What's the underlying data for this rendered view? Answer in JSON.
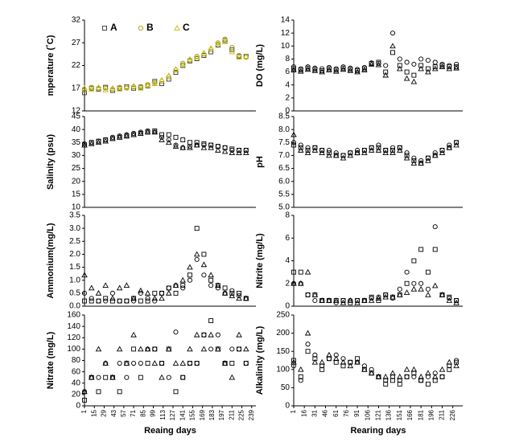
{
  "chart_data": [
    {
      "type": "scatter",
      "ylabel": "mperature (˚C)",
      "legend": "top",
      "x": [
        1,
        11,
        21,
        31,
        41,
        51,
        61,
        71,
        81,
        91,
        101,
        111,
        121,
        131,
        141,
        151,
        161,
        171,
        181,
        191,
        201,
        211,
        221,
        231
      ],
      "xlim": [
        1,
        245
      ],
      "ylim": [
        12,
        32
      ],
      "yticks": [
        12,
        17,
        22,
        27,
        32
      ],
      "series": [
        {
          "name": "A",
          "color": "#333333",
          "values": [
            16,
            17,
            16.8,
            17.2,
            16.5,
            17,
            17.3,
            17,
            17.2,
            17.5,
            18.5,
            18,
            19,
            20.5,
            22,
            23,
            23.5,
            24.2,
            25,
            26.5,
            27.5,
            25.5,
            24,
            24
          ]
        },
        {
          "name": "B",
          "color": "#a89400",
          "values": [
            16.5,
            17.2,
            17,
            17,
            16.8,
            17.2,
            17,
            17.3,
            17.4,
            17.8,
            18.2,
            18.5,
            19.5,
            21,
            22.5,
            23.2,
            24,
            24.5,
            25.5,
            27,
            27.8,
            26,
            24.2,
            23.8
          ]
        },
        {
          "name": "C",
          "color": "#c8c000",
          "values": [
            17,
            16.8,
            17.2,
            16.6,
            17,
            16.8,
            17.2,
            17.5,
            17,
            17.6,
            18,
            18.8,
            19.8,
            21.2,
            22.2,
            23.4,
            23.8,
            24.8,
            25.8,
            26.8,
            27.2,
            25,
            23.8,
            24
          ]
        }
      ]
    },
    {
      "type": "scatter",
      "ylabel": "DO (mg/L)",
      "x": [
        1,
        11,
        21,
        31,
        41,
        51,
        61,
        71,
        81,
        91,
        101,
        111,
        121,
        131,
        141,
        151,
        161,
        171,
        181,
        191,
        201,
        211,
        221,
        231
      ],
      "xlim": [
        1,
        240
      ],
      "ylim": [
        0,
        14
      ],
      "yticks": [
        0,
        2,
        4,
        6,
        8,
        10,
        12,
        14
      ],
      "series": [
        {
          "color": "#000000",
          "values": [
            6.5,
            6.3,
            6.6,
            6.4,
            6.2,
            6.5,
            6.3,
            6.6,
            6.4,
            6.2,
            6.5,
            7.3,
            7.5,
            6,
            9,
            7,
            6,
            5.5,
            7,
            6.5,
            6.8,
            7,
            6.8,
            6.8
          ]
        },
        {
          "color": "#000000",
          "values": [
            6.8,
            6.5,
            6.8,
            6.6,
            6.5,
            6.7,
            6.5,
            6.8,
            6.6,
            6.4,
            6.7,
            7.4,
            7.3,
            7,
            12,
            8,
            7.5,
            7.2,
            8,
            7.8,
            7.5,
            7.2,
            7,
            7.2
          ]
        },
        {
          "color": "#000000",
          "values": [
            6.3,
            6.1,
            6.4,
            6.2,
            6,
            6.3,
            6.1,
            6.4,
            6.2,
            6,
            6.3,
            7.2,
            7.1,
            5.5,
            10,
            6.5,
            5,
            4.5,
            6.5,
            6,
            6.5,
            6.8,
            6.5,
            6.6
          ]
        }
      ]
    },
    {
      "type": "scatter",
      "ylabel": "Salinity (psu)",
      "x": [
        1,
        11,
        21,
        31,
        41,
        51,
        61,
        71,
        81,
        91,
        101,
        111,
        121,
        131,
        141,
        151,
        161,
        171,
        181,
        191,
        201,
        211,
        221,
        231
      ],
      "xlim": [
        1,
        245
      ],
      "ylim": [
        10,
        45
      ],
      "yticks": [
        10,
        15,
        20,
        25,
        30,
        35,
        40,
        45
      ],
      "series": [
        {
          "color": "#000000",
          "values": [
            34,
            35,
            35.5,
            36,
            36.5,
            37,
            37.5,
            38,
            38.5,
            39,
            39.5,
            38,
            38,
            37,
            36,
            35,
            35,
            34.5,
            34,
            33.5,
            33,
            32.5,
            32,
            32
          ]
        },
        {
          "color": "#000000",
          "values": [
            34.5,
            35,
            35.5,
            36,
            37,
            37.5,
            38,
            38.5,
            39,
            39.5,
            39,
            37,
            36,
            34,
            33,
            33.5,
            34,
            34,
            34,
            33.5,
            33,
            32,
            32,
            32
          ]
        },
        {
          "color": "#000000",
          "values": [
            34,
            34.5,
            35,
            35.5,
            36.5,
            37,
            37.5,
            38,
            38.5,
            39,
            39,
            36,
            35,
            33.5,
            33,
            33,
            34,
            33,
            33,
            32,
            31.5,
            31,
            31,
            31
          ]
        }
      ]
    },
    {
      "type": "scatter",
      "ylabel": "pH",
      "x": [
        1,
        11,
        21,
        31,
        41,
        51,
        61,
        71,
        81,
        91,
        101,
        111,
        121,
        131,
        141,
        151,
        161,
        171,
        181,
        191,
        201,
        211,
        221,
        231
      ],
      "xlim": [
        1,
        240
      ],
      "ylim": [
        5,
        8.5
      ],
      "yticks": [
        {
          "value": 5,
          "label": "5.0"
        },
        5.5,
        {
          "value": 6,
          "label": "6.0"
        },
        6.5,
        {
          "value": 7,
          "label": "7.0"
        },
        7.5,
        {
          "value": 8,
          "label": "8.0"
        },
        8.5
      ],
      "series": [
        {
          "color": "#000000",
          "values": [
            7.4,
            7.3,
            7.2,
            7.3,
            7.2,
            7.1,
            7.0,
            7.0,
            7.1,
            7.1,
            7.2,
            7.3,
            7.3,
            7.2,
            7.2,
            7.3,
            7.0,
            6.8,
            6.7,
            6.9,
            7.0,
            7.2,
            7.3,
            7.5
          ]
        },
        {
          "color": "#000000",
          "values": [
            7.5,
            7.4,
            7.3,
            7.3,
            7.2,
            7.2,
            7.1,
            7.0,
            7.1,
            7.2,
            7.2,
            7.3,
            7.4,
            7.2,
            7.3,
            7.3,
            7.1,
            6.9,
            6.8,
            6.9,
            7.1,
            7.2,
            7.4,
            7.5
          ]
        },
        {
          "color": "#000000",
          "values": [
            7.8,
            7.2,
            7.1,
            7.2,
            7.1,
            7.0,
            7.0,
            6.9,
            7.0,
            7.1,
            7.1,
            7.2,
            7.2,
            7.1,
            7.1,
            7.2,
            6.9,
            6.7,
            6.7,
            6.8,
            7.0,
            7.1,
            7.3,
            7.4
          ]
        }
      ]
    },
    {
      "type": "scatter",
      "ylabel": "Ammonium(mg/L)",
      "x": [
        1,
        11,
        21,
        31,
        41,
        51,
        61,
        71,
        81,
        91,
        101,
        111,
        121,
        131,
        141,
        151,
        161,
        171,
        181,
        191,
        201,
        211,
        221,
        231
      ],
      "xlim": [
        1,
        245
      ],
      "ylim": [
        0,
        3.5
      ],
      "yticks": [
        {
          "value": 0,
          "label": "0.0"
        },
        0.5,
        {
          "value": 1,
          "label": "1.0"
        },
        1.5,
        {
          "value": 2,
          "label": "2.0"
        },
        2.5,
        {
          "value": 3,
          "label": "3.0"
        },
        3.5
      ],
      "series": [
        {
          "color": "#000000",
          "values": [
            0.2,
            0.2,
            0.2,
            0.3,
            0.2,
            0.2,
            0.2,
            0.3,
            0.2,
            0.2,
            0.5,
            0.5,
            0.7,
            0.5,
            0.8,
            1.2,
            3.0,
            2.0,
            1.0,
            0.8,
            0.7,
            0.5,
            0.5,
            0.3
          ]
        },
        {
          "color": "#000000",
          "values": [
            0.5,
            0.3,
            0.2,
            0.2,
            0.5,
            0.2,
            0.2,
            0.2,
            0.5,
            0.3,
            0.2,
            0.5,
            0.7,
            0.8,
            0.7,
            1.0,
            1.8,
            1.2,
            0.8,
            0.7,
            0.5,
            0.6,
            0.4,
            0.3
          ]
        },
        {
          "color": "#000000",
          "values": [
            1.2,
            0.7,
            0.5,
            0.8,
            0.3,
            0.7,
            0.8,
            0.3,
            0.6,
            0.5,
            0.3,
            0.3,
            0.5,
            0.8,
            1.0,
            1.5,
            2.0,
            1.6,
            1.2,
            0.8,
            0.5,
            0.4,
            0.3,
            0.3
          ]
        }
      ]
    },
    {
      "type": "scatter",
      "ylabel": "Nitrite (mg/L)",
      "x": [
        1,
        11,
        21,
        31,
        41,
        51,
        61,
        71,
        81,
        91,
        101,
        111,
        121,
        131,
        141,
        151,
        161,
        171,
        181,
        191,
        201,
        211,
        221,
        231
      ],
      "xlim": [
        1,
        240
      ],
      "ylim": [
        0,
        8
      ],
      "yticks": [
        0,
        2,
        4,
        6,
        8
      ],
      "series": [
        {
          "color": "#000000",
          "values": [
            3,
            3,
            1,
            1,
            0.5,
            0.5,
            0.5,
            0.5,
            0.3,
            0.5,
            0.5,
            0.8,
            0.5,
            1,
            0.8,
            1,
            2,
            4,
            5,
            3,
            5,
            1,
            0.8,
            0.5
          ]
        },
        {
          "color": "#000000",
          "values": [
            2,
            2,
            1,
            0.5,
            0.5,
            0.5,
            0.3,
            0.5,
            0.5,
            0.5,
            0.5,
            0.7,
            0.8,
            1,
            0.7,
            1.5,
            3,
            2,
            2,
            1.5,
            7,
            1,
            0.7,
            0.5
          ]
        },
        {
          "color": "#000000",
          "values": [
            2,
            2,
            3,
            1,
            0.5,
            0.5,
            0.5,
            0.3,
            0.5,
            0.3,
            0.5,
            0.5,
            0.7,
            0.8,
            0.8,
            1,
            1.2,
            1.5,
            1.5,
            1,
            1.8,
            1,
            0.5,
            0.3
          ]
        }
      ]
    },
    {
      "type": "scatter",
      "ylabel": "Nitrate (mg/L)",
      "xlabel": "Reaing days",
      "x": [
        1,
        11,
        21,
        31,
        41,
        51,
        61,
        71,
        81,
        91,
        101,
        111,
        121,
        131,
        141,
        151,
        161,
        171,
        181,
        191,
        201,
        211,
        221,
        231
      ],
      "xlim": [
        1,
        245
      ],
      "xticks": [
        1,
        15,
        29,
        43,
        57,
        71,
        85,
        99,
        113,
        127,
        141,
        155,
        169,
        183,
        197,
        211,
        225,
        239
      ],
      "ylim": [
        0,
        160
      ],
      "yticks": [
        0,
        20,
        40,
        60,
        80,
        100,
        120,
        140,
        160
      ],
      "series": [
        {
          "color": "#000000",
          "values": [
            10,
            50,
            25,
            50,
            50,
            25,
            75,
            100,
            50,
            75,
            100,
            75,
            100,
            25,
            50,
            75,
            75,
            125,
            150,
            100,
            75,
            75,
            100,
            75
          ]
        },
        {
          "color": "#000000",
          "values": [
            25,
            50,
            50,
            75,
            50,
            75,
            50,
            75,
            75,
            100,
            100,
            75,
            50,
            130,
            50,
            75,
            75,
            125,
            100,
            125,
            75,
            100,
            100,
            75
          ]
        },
        {
          "color": "#000000",
          "values": [
            25,
            50,
            100,
            75,
            50,
            100,
            75,
            125,
            100,
            100,
            75,
            50,
            100,
            75,
            75,
            100,
            125,
            100,
            125,
            100,
            75,
            50,
            125,
            100
          ]
        }
      ]
    },
    {
      "type": "scatter",
      "ylabel": "Alkalinity (mg/L)",
      "xlabel": "Rearing days",
      "x": [
        1,
        11,
        21,
        31,
        41,
        51,
        61,
        71,
        81,
        91,
        101,
        111,
        121,
        131,
        141,
        151,
        161,
        171,
        181,
        191,
        201,
        211,
        221,
        231
      ],
      "xlim": [
        1,
        240
      ],
      "xticks": [
        1,
        16,
        31,
        46,
        61,
        76,
        91,
        106,
        121,
        136,
        151,
        166,
        181,
        196,
        211,
        226
      ],
      "ylim": [
        0,
        250
      ],
      "yticks": [
        0,
        50,
        100,
        150,
        200,
        250
      ],
      "series": [
        {
          "color": "#000000",
          "values": [
            125,
            80,
            150,
            130,
            100,
            130,
            120,
            110,
            120,
            130,
            100,
            90,
            80,
            60,
            70,
            60,
            80,
            90,
            70,
            60,
            70,
            80,
            100,
            120
          ]
        },
        {
          "color": "#000000",
          "values": [
            110,
            70,
            170,
            140,
            110,
            130,
            140,
            130,
            120,
            120,
            110,
            100,
            80,
            70,
            80,
            70,
            80,
            80,
            70,
            80,
            90,
            80,
            110,
            125
          ]
        },
        {
          "color": "#000000",
          "values": [
            120,
            100,
            200,
            120,
            120,
            140,
            130,
            120,
            110,
            120,
            100,
            90,
            80,
            80,
            90,
            80,
            100,
            100,
            80,
            90,
            80,
            100,
            120,
            110
          ]
        }
      ]
    }
  ]
}
